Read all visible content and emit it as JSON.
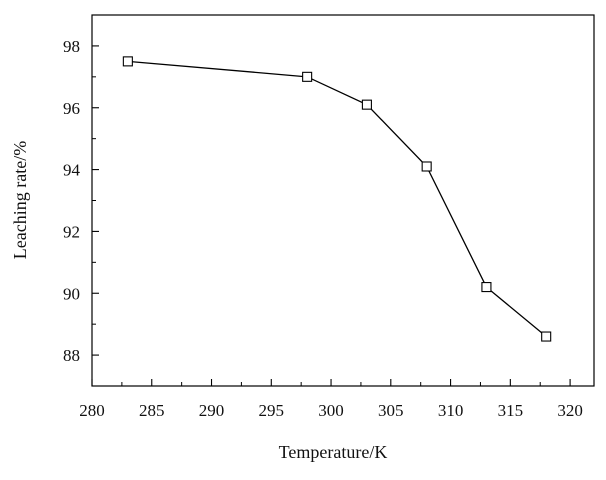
{
  "chart_data": {
    "type": "line",
    "title": "",
    "xlabel": "Temperature/K",
    "ylabel": "Leaching rate/%",
    "x": [
      283,
      298,
      303,
      308,
      313,
      318
    ],
    "series": [
      {
        "values": [
          97.5,
          97.0,
          96.1,
          94.1,
          90.2,
          88.6
        ]
      }
    ],
    "xlim": [
      280,
      322
    ],
    "ylim": [
      87.0,
      99.0
    ],
    "xticks": [
      280,
      285,
      290,
      295,
      300,
      305,
      310,
      315,
      320
    ],
    "yticks": [
      88,
      90,
      92,
      94,
      96,
      98
    ],
    "xtick_labels": [
      "280",
      "285",
      "290",
      "295",
      "300",
      "305",
      "310",
      "315",
      "320"
    ],
    "ytick_labels": [
      "88",
      "90",
      "92",
      "94",
      "96",
      "98"
    ],
    "marker": "hollow-square",
    "grid": false,
    "legend": "none",
    "colors": {
      "line": "#000000",
      "marker_fill": "#ffffff"
    }
  }
}
